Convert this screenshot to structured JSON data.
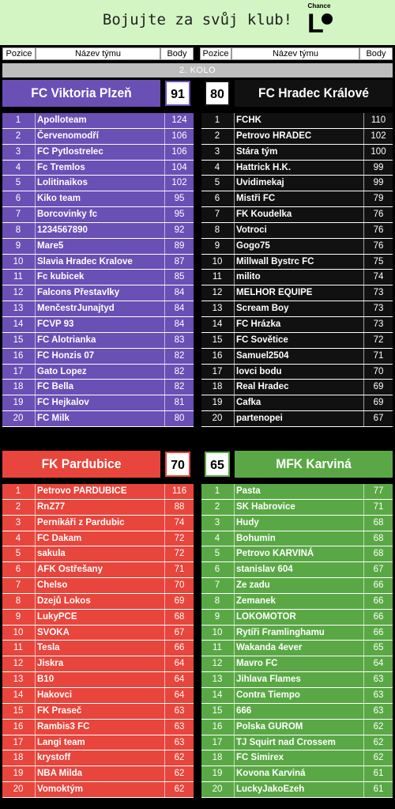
{
  "banner": {
    "title": "Bojujte za svůj klub!",
    "logo_text": "Chance",
    "logo_mark": "L"
  },
  "header": {
    "pos": "Pozice",
    "team": "Název týmu",
    "pts": "Body"
  },
  "round": "2. KOLO",
  "colors": {
    "plzen": "#6a4fb5",
    "hradec": "#111111",
    "pardubice": "#e8453c",
    "karvina": "#5aa845"
  },
  "groups": {
    "plzen": {
      "name": "FC Viktoria Plzeň",
      "score": "91",
      "rows": [
        [
          "1",
          "Apolloteam",
          "124"
        ],
        [
          "2",
          "Červenomodří",
          "106"
        ],
        [
          "3",
          "FC Pytlostrelec",
          "106"
        ],
        [
          "4",
          "Fc Tremlos",
          "104"
        ],
        [
          "5",
          "Lolitinaikos",
          "102"
        ],
        [
          "6",
          "Kiko team",
          "95"
        ],
        [
          "7",
          "Borcovinky fc",
          "95"
        ],
        [
          "8",
          "1234567890",
          "92"
        ],
        [
          "9",
          "Mare5",
          "89"
        ],
        [
          "10",
          "Slavia Hradec Kralove",
          "87"
        ],
        [
          "11",
          "Fc kubicek",
          "85"
        ],
        [
          "12",
          "Falcons Přestavlky",
          "84"
        ],
        [
          "13",
          "MenčestrJunajtyd",
          "84"
        ],
        [
          "14",
          "FCVP 93",
          "84"
        ],
        [
          "15",
          "FC Alotrianka",
          "83"
        ],
        [
          "16",
          "FC Honzis 07",
          "82"
        ],
        [
          "17",
          "Gato Lopez",
          "82"
        ],
        [
          "18",
          "FC Bella",
          "82"
        ],
        [
          "19",
          "FC Hejkalov",
          "81"
        ],
        [
          "20",
          "FC Milk",
          "80"
        ]
      ]
    },
    "hradec": {
      "name": "FC Hradec Králové",
      "score": "80",
      "rows": [
        [
          "1",
          "FCHK",
          "110"
        ],
        [
          "2",
          "Petrovo HRADEC",
          "102"
        ],
        [
          "3",
          "Stára tým",
          "100"
        ],
        [
          "4",
          "Hattrick H.K.",
          "99"
        ],
        [
          "5",
          "Uvidimekaj",
          "99"
        ],
        [
          "6",
          "Mistři FC",
          "79"
        ],
        [
          "7",
          "FK Koudelka",
          "76"
        ],
        [
          "8",
          "Votroci",
          "76"
        ],
        [
          "9",
          "Gogo75",
          "76"
        ],
        [
          "10",
          "Millwall Bystrc FC",
          "75"
        ],
        [
          "11",
          "milito",
          "74"
        ],
        [
          "12",
          "MELHOR EQUIPE",
          "73"
        ],
        [
          "13",
          "Scream Boy",
          "73"
        ],
        [
          "14",
          "FC Hrázka",
          "73"
        ],
        [
          "15",
          "FC Sovětice",
          "72"
        ],
        [
          "16",
          "Samuel2504",
          "71"
        ],
        [
          "17",
          "lovci bodu",
          "70"
        ],
        [
          "18",
          "Real Hradec",
          "69"
        ],
        [
          "19",
          "Cafka",
          "69"
        ],
        [
          "20",
          "partenopei",
          "67"
        ]
      ]
    },
    "pardubice": {
      "name": "FK Pardubice",
      "score": "70",
      "rows": [
        [
          "1",
          "Petrovo PARDUBICE",
          "116"
        ],
        [
          "2",
          "RnZ77",
          "88"
        ],
        [
          "3",
          "Perníkáři z Pardubic",
          "74"
        ],
        [
          "4",
          "FC Dakam",
          "72"
        ],
        [
          "5",
          "sakula",
          "72"
        ],
        [
          "6",
          "AFK Ostřešany",
          "71"
        ],
        [
          "7",
          "Chelso",
          "70"
        ],
        [
          "8",
          "Dzejů Lokos",
          "69"
        ],
        [
          "9",
          "LukyPCE",
          "68"
        ],
        [
          "10",
          "SVOKA",
          "67"
        ],
        [
          "11",
          "Tesla",
          "66"
        ],
        [
          "12",
          "Jiskra",
          "64"
        ],
        [
          "13",
          "B10",
          "64"
        ],
        [
          "14",
          "Hakovci",
          "64"
        ],
        [
          "15",
          "FK Praseč",
          "63"
        ],
        [
          "16",
          "Rambis3 FC",
          "63"
        ],
        [
          "17",
          "Langi team",
          "63"
        ],
        [
          "18",
          "krystoff",
          "62"
        ],
        [
          "19",
          "NBA Milda",
          "62"
        ],
        [
          "20",
          "Vomoktým",
          "62"
        ]
      ]
    },
    "karvina": {
      "name": "MFK Karviná",
      "score": "65",
      "rows": [
        [
          "1",
          "Pasta",
          "77"
        ],
        [
          "2",
          "SK Habrovice",
          "71"
        ],
        [
          "3",
          "Hudy",
          "68"
        ],
        [
          "4",
          "Bohumin",
          "68"
        ],
        [
          "5",
          "Petrovo KARVINÁ",
          "68"
        ],
        [
          "6",
          "stanislav 604",
          "67"
        ],
        [
          "7",
          "Ze zadu",
          "66"
        ],
        [
          "8",
          "Zemanek",
          "66"
        ],
        [
          "9",
          "LOKOMOTOR",
          "66"
        ],
        [
          "10",
          "Rytíři Framlinghamu",
          "66"
        ],
        [
          "11",
          "Wakanda 4ever",
          "65"
        ],
        [
          "12",
          "Mavro FC",
          "64"
        ],
        [
          "13",
          "Jihlava Flames",
          "63"
        ],
        [
          "14",
          "Contra Tiempo",
          "63"
        ],
        [
          "15",
          "666",
          "63"
        ],
        [
          "16",
          "Polska GUROM",
          "62"
        ],
        [
          "17",
          "TJ Squirt nad Crossem",
          "62"
        ],
        [
          "18",
          "FC Simirex",
          "62"
        ],
        [
          "19",
          "Kovona Karviná",
          "61"
        ],
        [
          "20",
          "LuckyJakoEzeh",
          "61"
        ]
      ]
    }
  }
}
